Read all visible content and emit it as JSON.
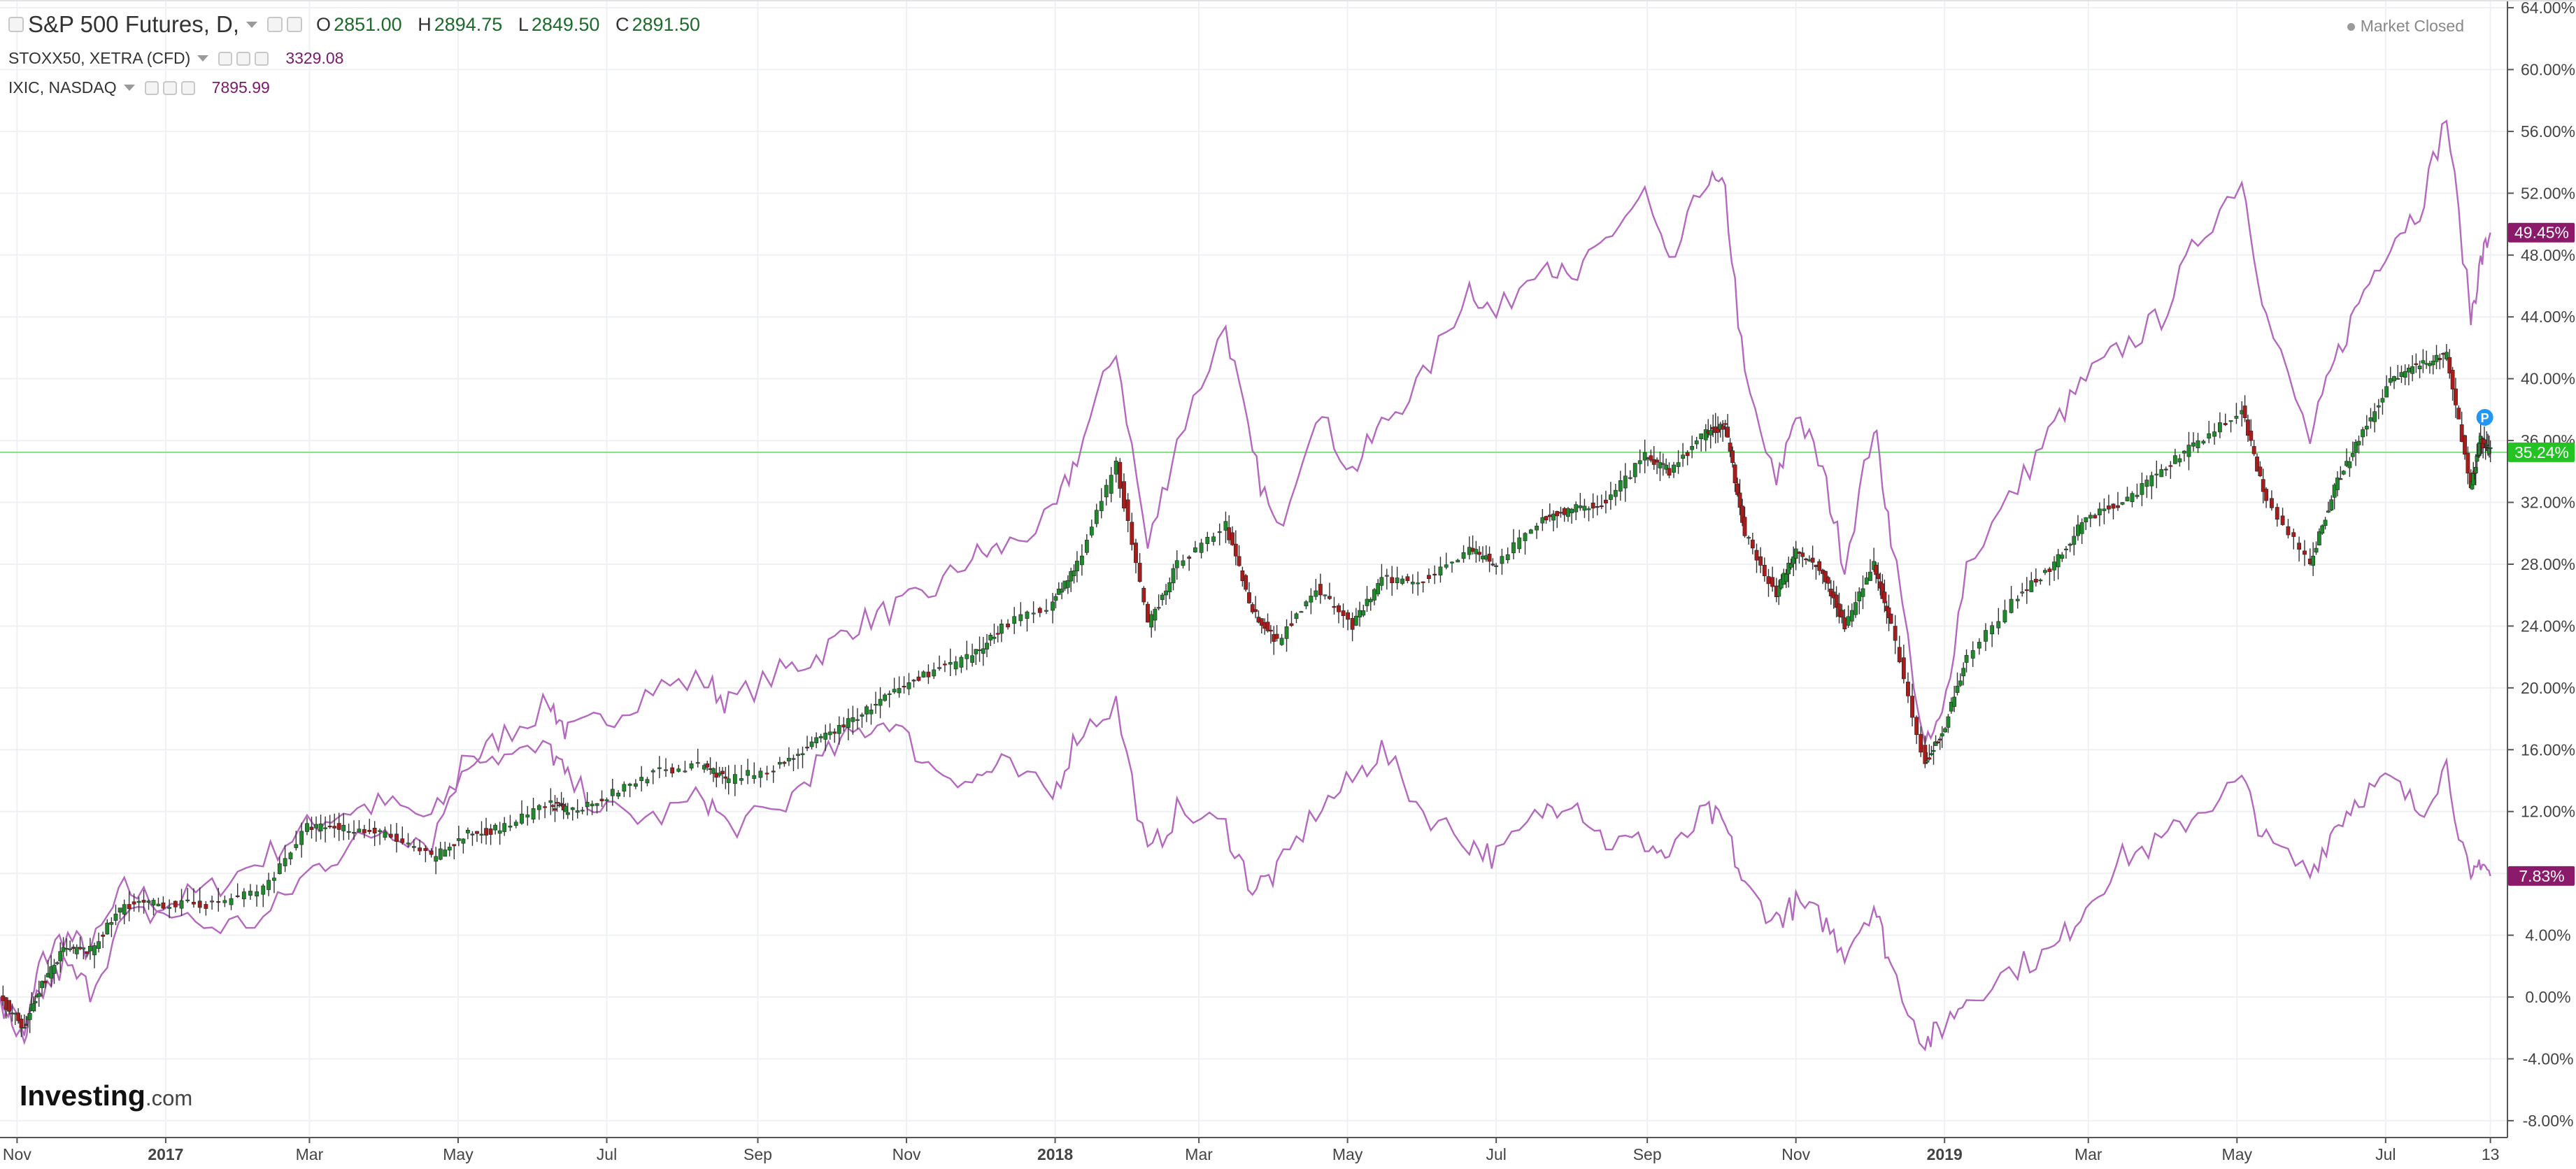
{
  "header": {
    "main_series_label": "S&P 500 Futures, D,",
    "ohlc": {
      "o_label": "O",
      "o": "2851.00",
      "h_label": "H",
      "h": "2894.75",
      "l_label": "L",
      "l": "2849.50",
      "c_label": "C",
      "c": "2891.50"
    },
    "compare_1_label": "STOXX50, XETRA (CFD)",
    "compare_1_value": "3329.08",
    "compare_2_label": "IXIC, NASDAQ",
    "compare_2_value": "7895.99",
    "market_status": "Market Closed"
  },
  "watermark": {
    "brand": "Investing",
    "suffix": ".com"
  },
  "colors": {
    "candle_up": "#1f8a2c",
    "candle_down": "#a81c1c",
    "compare_line": "#b469be",
    "badge_ixic": "#8b1a6b",
    "badge_stoxx": "#8b1a6b",
    "badge_spx": "#22c322",
    "p_marker": "#2196f3"
  },
  "chart_data": {
    "type": "line",
    "title": "",
    "xlabel": "",
    "ylabel": "",
    "ylim": [
      -9,
      64.5
    ],
    "y_ticks": [
      "64.00%",
      "60.00%",
      "56.00%",
      "52.00%",
      "48.00%",
      "44.00%",
      "40.00%",
      "36.00%",
      "32.00%",
      "28.00%",
      "24.00%",
      "20.00%",
      "16.00%",
      "12.00%",
      "8.00%",
      "4.00%",
      "0.00%",
      "-4.00%",
      "-8.00%"
    ],
    "x_range": [
      "2016-10-25",
      "2019-08-20"
    ],
    "x_ticks": [
      {
        "date": "2016-11-01",
        "label": "Nov"
      },
      {
        "date": "2017-01-01",
        "label": "2017",
        "bold": true
      },
      {
        "date": "2017-03-01",
        "label": "Mar"
      },
      {
        "date": "2017-05-01",
        "label": "May"
      },
      {
        "date": "2017-07-01",
        "label": "Jul"
      },
      {
        "date": "2017-09-01",
        "label": "Sep"
      },
      {
        "date": "2017-11-01",
        "label": "Nov"
      },
      {
        "date": "2018-01-01",
        "label": "2018",
        "bold": true
      },
      {
        "date": "2018-03-01",
        "label": "Mar"
      },
      {
        "date": "2018-05-01",
        "label": "May"
      },
      {
        "date": "2018-07-01",
        "label": "Jul"
      },
      {
        "date": "2018-09-01",
        "label": "Sep"
      },
      {
        "date": "2018-11-01",
        "label": "Nov"
      },
      {
        "date": "2019-01-01",
        "label": "2019",
        "bold": true
      },
      {
        "date": "2019-03-01",
        "label": "Mar"
      },
      {
        "date": "2019-05-01",
        "label": "May"
      },
      {
        "date": "2019-07-01",
        "label": "Jul"
      },
      {
        "date": "2019-08-13",
        "label": "13"
      }
    ],
    "series": [
      {
        "name": "IXIC, NASDAQ",
        "style": "line",
        "points": [
          [
            "2016-10-25",
            0
          ],
          [
            "2016-11-04",
            -3
          ],
          [
            "2016-11-10",
            2
          ],
          [
            "2016-11-20",
            4
          ],
          [
            "2016-12-01",
            3
          ],
          [
            "2016-12-15",
            7
          ],
          [
            "2016-12-31",
            6
          ],
          [
            "2017-01-20",
            7
          ],
          [
            "2017-02-10",
            9
          ],
          [
            "2017-02-28",
            11
          ],
          [
            "2017-03-15",
            12
          ],
          [
            "2017-04-01",
            12.5
          ],
          [
            "2017-04-20",
            11.5
          ],
          [
            "2017-05-05",
            15
          ],
          [
            "2017-05-20",
            17
          ],
          [
            "2017-06-08",
            19
          ],
          [
            "2017-06-15",
            17
          ],
          [
            "2017-07-01",
            18
          ],
          [
            "2017-07-20",
            20
          ],
          [
            "2017-08-10",
            20.5
          ],
          [
            "2017-08-20",
            19
          ],
          [
            "2017-09-10",
            21
          ],
          [
            "2017-09-25",
            22
          ],
          [
            "2017-10-10",
            24
          ],
          [
            "2017-10-25",
            25
          ],
          [
            "2017-11-10",
            26
          ],
          [
            "2017-11-28",
            28.5
          ],
          [
            "2017-12-10",
            29
          ],
          [
            "2017-12-31",
            31
          ],
          [
            "2018-01-10",
            35
          ],
          [
            "2018-01-26",
            42
          ],
          [
            "2018-02-08",
            29
          ],
          [
            "2018-02-20",
            36
          ],
          [
            "2018-03-12",
            43.5
          ],
          [
            "2018-03-23",
            35
          ],
          [
            "2018-04-02",
            30
          ],
          [
            "2018-04-18",
            38
          ],
          [
            "2018-05-03",
            34
          ],
          [
            "2018-05-15",
            37
          ],
          [
            "2018-06-01",
            40
          ],
          [
            "2018-06-20",
            46
          ],
          [
            "2018-07-01",
            44
          ],
          [
            "2018-07-20",
            48
          ],
          [
            "2018-08-01",
            46
          ],
          [
            "2018-08-15",
            49
          ],
          [
            "2018-08-31",
            52
          ],
          [
            "2018-09-10",
            47
          ],
          [
            "2018-09-25",
            53
          ],
          [
            "2018-10-03",
            52
          ],
          [
            "2018-10-11",
            40
          ],
          [
            "2018-10-24",
            33
          ],
          [
            "2018-11-01",
            38
          ],
          [
            "2018-11-12",
            34
          ],
          [
            "2018-11-21",
            28
          ],
          [
            "2018-12-03",
            37
          ],
          [
            "2018-12-10",
            30
          ],
          [
            "2018-12-24",
            16
          ],
          [
            "2018-12-31",
            18
          ],
          [
            "2019-01-10",
            28
          ],
          [
            "2019-01-31",
            33
          ],
          [
            "2019-02-15",
            37
          ],
          [
            "2019-02-28",
            40
          ],
          [
            "2019-03-15",
            42
          ],
          [
            "2019-03-31",
            44
          ],
          [
            "2019-04-15",
            49
          ],
          [
            "2019-05-03",
            53
          ],
          [
            "2019-05-13",
            44
          ],
          [
            "2019-05-31",
            36
          ],
          [
            "2019-06-10",
            41
          ],
          [
            "2019-06-20",
            45
          ],
          [
            "2019-07-03",
            49
          ],
          [
            "2019-07-15",
            51
          ],
          [
            "2019-07-26",
            57
          ],
          [
            "2019-08-05",
            44
          ],
          [
            "2019-08-09",
            47.5
          ],
          [
            "2019-08-13",
            49.45
          ]
        ]
      },
      {
        "name": "STOXX50, XETRA (CFD)",
        "style": "line",
        "points": [
          [
            "2016-10-25",
            0
          ],
          [
            "2016-11-04",
            -2.5
          ],
          [
            "2016-11-10",
            0
          ],
          [
            "2016-11-20",
            2
          ],
          [
            "2016-12-01",
            0.5
          ],
          [
            "2016-12-15",
            5
          ],
          [
            "2016-12-31",
            5.5
          ],
          [
            "2017-01-20",
            4.5
          ],
          [
            "2017-02-10",
            5
          ],
          [
            "2017-02-28",
            8
          ],
          [
            "2017-03-15",
            9.5
          ],
          [
            "2017-04-01",
            11
          ],
          [
            "2017-04-20",
            10
          ],
          [
            "2017-05-05",
            16
          ],
          [
            "2017-05-20",
            15.5
          ],
          [
            "2017-06-08",
            16
          ],
          [
            "2017-06-15",
            14
          ],
          [
            "2017-07-01",
            12
          ],
          [
            "2017-07-20",
            11.5
          ],
          [
            "2017-08-10",
            13
          ],
          [
            "2017-08-20",
            11
          ],
          [
            "2017-09-10",
            12
          ],
          [
            "2017-09-25",
            15
          ],
          [
            "2017-10-10",
            17
          ],
          [
            "2017-10-25",
            18
          ],
          [
            "2017-11-10",
            15
          ],
          [
            "2017-11-28",
            14
          ],
          [
            "2017-12-10",
            15
          ],
          [
            "2017-12-31",
            13
          ],
          [
            "2018-01-10",
            17
          ],
          [
            "2018-01-26",
            19
          ],
          [
            "2018-02-08",
            9
          ],
          [
            "2018-02-20",
            12
          ],
          [
            "2018-03-12",
            11
          ],
          [
            "2018-03-23",
            7
          ],
          [
            "2018-04-02",
            8
          ],
          [
            "2018-04-18",
            12
          ],
          [
            "2018-05-03",
            14
          ],
          [
            "2018-05-15",
            16
          ],
          [
            "2018-06-01",
            12
          ],
          [
            "2018-06-20",
            10
          ],
          [
            "2018-07-01",
            9
          ],
          [
            "2018-07-20",
            12
          ],
          [
            "2018-08-01",
            13
          ],
          [
            "2018-08-15",
            10
          ],
          [
            "2018-08-31",
            10
          ],
          [
            "2018-09-10",
            9
          ],
          [
            "2018-09-25",
            12
          ],
          [
            "2018-10-03",
            11
          ],
          [
            "2018-10-11",
            7
          ],
          [
            "2018-10-24",
            5
          ],
          [
            "2018-11-01",
            6
          ],
          [
            "2018-11-12",
            5
          ],
          [
            "2018-11-21",
            3
          ],
          [
            "2018-12-03",
            6
          ],
          [
            "2018-12-10",
            2
          ],
          [
            "2018-12-24",
            -3
          ],
          [
            "2018-12-31",
            -2
          ],
          [
            "2019-01-10",
            0
          ],
          [
            "2019-01-31",
            2
          ],
          [
            "2019-02-15",
            3
          ],
          [
            "2019-02-28",
            6
          ],
          [
            "2019-03-15",
            9
          ],
          [
            "2019-03-31",
            10
          ],
          [
            "2019-04-15",
            12
          ],
          [
            "2019-05-03",
            14
          ],
          [
            "2019-05-13",
            10
          ],
          [
            "2019-05-31",
            8
          ],
          [
            "2019-06-10",
            11
          ],
          [
            "2019-06-20",
            13
          ],
          [
            "2019-07-03",
            14
          ],
          [
            "2019-07-15",
            12
          ],
          [
            "2019-07-26",
            15
          ],
          [
            "2019-08-05",
            7
          ],
          [
            "2019-08-09",
            9
          ],
          [
            "2019-08-13",
            7.83
          ]
        ]
      },
      {
        "name": "S&P 500 Futures, D,",
        "style": "candles",
        "points": [
          [
            "2016-10-25",
            0
          ],
          [
            "2016-11-04",
            -2
          ],
          [
            "2016-11-10",
            0.5
          ],
          [
            "2016-11-20",
            3
          ],
          [
            "2016-12-01",
            3
          ],
          [
            "2016-12-15",
            6
          ],
          [
            "2016-12-31",
            6
          ],
          [
            "2017-01-20",
            6
          ],
          [
            "2017-02-10",
            7
          ],
          [
            "2017-02-28",
            11
          ],
          [
            "2017-03-15",
            11
          ],
          [
            "2017-04-01",
            10.5
          ],
          [
            "2017-04-20",
            9
          ],
          [
            "2017-05-05",
            10.5
          ],
          [
            "2017-05-20",
            11
          ],
          [
            "2017-06-08",
            12.5
          ],
          [
            "2017-06-15",
            12
          ],
          [
            "2017-07-01",
            13
          ],
          [
            "2017-07-20",
            14.5
          ],
          [
            "2017-08-10",
            15
          ],
          [
            "2017-08-20",
            14
          ],
          [
            "2017-09-10",
            15
          ],
          [
            "2017-09-25",
            16.5
          ],
          [
            "2017-10-10",
            18
          ],
          [
            "2017-10-25",
            19.5
          ],
          [
            "2017-11-10",
            21
          ],
          [
            "2017-11-28",
            22
          ],
          [
            "2017-12-10",
            24
          ],
          [
            "2017-12-31",
            25.5
          ],
          [
            "2018-01-10",
            28
          ],
          [
            "2018-01-26",
            34.5
          ],
          [
            "2018-02-08",
            24
          ],
          [
            "2018-02-20",
            28
          ],
          [
            "2018-03-12",
            30.5
          ],
          [
            "2018-03-23",
            25
          ],
          [
            "2018-04-02",
            23
          ],
          [
            "2018-04-18",
            26.5
          ],
          [
            "2018-05-03",
            24
          ],
          [
            "2018-05-15",
            27
          ],
          [
            "2018-06-01",
            27
          ],
          [
            "2018-06-20",
            29
          ],
          [
            "2018-07-01",
            28
          ],
          [
            "2018-07-20",
            31
          ],
          [
            "2018-08-01",
            31.5
          ],
          [
            "2018-08-15",
            32
          ],
          [
            "2018-08-31",
            35
          ],
          [
            "2018-09-10",
            34
          ],
          [
            "2018-09-25",
            36.5
          ],
          [
            "2018-10-03",
            37
          ],
          [
            "2018-10-11",
            30
          ],
          [
            "2018-10-24",
            26
          ],
          [
            "2018-11-01",
            29
          ],
          [
            "2018-11-12",
            27.5
          ],
          [
            "2018-11-21",
            24
          ],
          [
            "2018-12-03",
            28
          ],
          [
            "2018-12-10",
            24
          ],
          [
            "2018-12-24",
            15
          ],
          [
            "2018-12-31",
            17
          ],
          [
            "2019-01-10",
            22
          ],
          [
            "2019-01-31",
            26
          ],
          [
            "2019-02-15",
            28
          ],
          [
            "2019-02-28",
            31
          ],
          [
            "2019-03-15",
            32
          ],
          [
            "2019-03-31",
            34
          ],
          [
            "2019-04-15",
            36
          ],
          [
            "2019-05-03",
            38
          ],
          [
            "2019-05-13",
            32
          ],
          [
            "2019-05-31",
            28
          ],
          [
            "2019-06-10",
            33
          ],
          [
            "2019-06-20",
            36
          ],
          [
            "2019-07-03",
            40
          ],
          [
            "2019-07-15",
            41
          ],
          [
            "2019-07-26",
            41.5
          ],
          [
            "2019-08-05",
            33
          ],
          [
            "2019-08-09",
            36
          ],
          [
            "2019-08-13",
            35.24
          ]
        ]
      }
    ],
    "last_values": [
      {
        "series": "IXIC, NASDAQ",
        "value": 49.45,
        "label": "49.45%"
      },
      {
        "series": "S&P 500 Futures, D,",
        "value": 35.24,
        "label": "35.24%"
      },
      {
        "series": "STOXX50, XETRA (CFD)",
        "value": 7.83,
        "label": "7.83%"
      }
    ],
    "price_line": 35.24,
    "grid": true,
    "legend": "top-left"
  }
}
